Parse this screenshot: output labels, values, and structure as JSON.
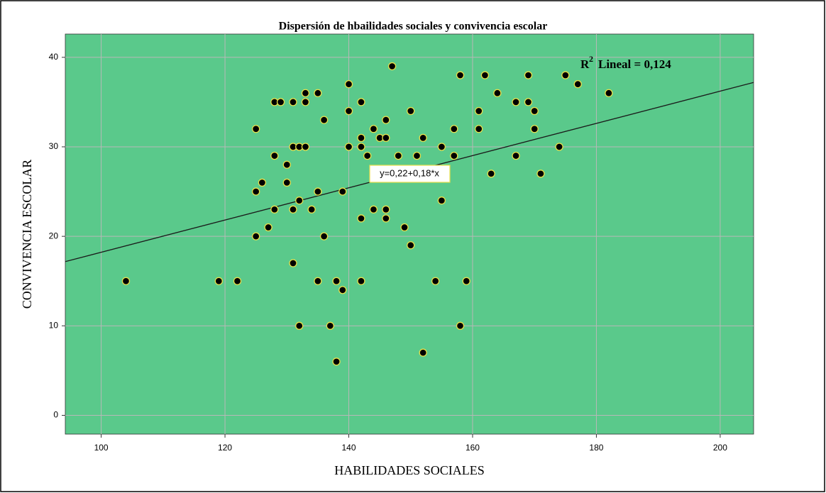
{
  "chart_data": {
    "type": "scatter",
    "title": "Dispersión de hbailidades sociales y convivencia escolar",
    "x_label": "HABILIDADES SOCIALES",
    "y_label": "CONVIVENCIA ESCOLAR",
    "x": [
      104,
      119,
      122,
      125,
      125,
      125,
      126,
      127,
      128,
      128,
      128,
      129,
      130,
      130,
      131,
      131,
      131,
      131,
      132,
      132,
      132,
      133,
      133,
      133,
      134,
      135,
      135,
      135,
      136,
      136,
      137,
      138,
      138,
      139,
      139,
      140,
      140,
      140,
      142,
      142,
      142,
      142,
      142,
      143,
      144,
      144,
      145,
      146,
      146,
      146,
      146,
      147,
      148,
      149,
      150,
      150,
      151,
      152,
      152,
      154,
      155,
      155,
      157,
      157,
      158,
      158,
      159,
      161,
      161,
      162,
      163,
      164,
      167,
      167,
      169,
      169,
      170,
      170,
      171,
      174,
      175,
      177,
      182
    ],
    "values": [
      15,
      15,
      15,
      32,
      25,
      20,
      26,
      21,
      35,
      29,
      23,
      35,
      28,
      26,
      35,
      30,
      23,
      17,
      30,
      24,
      10,
      36,
      35,
      30,
      23,
      36,
      25,
      15,
      33,
      20,
      10,
      15,
      6,
      25,
      14,
      37,
      34,
      30,
      35,
      31,
      30,
      22,
      15,
      29,
      32,
      23,
      31,
      33,
      31,
      23,
      22,
      39,
      29,
      21,
      34,
      19,
      29,
      31,
      7,
      15,
      30,
      24,
      32,
      29,
      38,
      10,
      15,
      34,
      32,
      38,
      27,
      36,
      35,
      29,
      38,
      35,
      34,
      32,
      27,
      30,
      38,
      37,
      36
    ],
    "point_color": "#000000",
    "point_edge_color": "#e8e04a",
    "background": "#5ac98b",
    "fit": {
      "label": "y=0,22+0,18*x",
      "intercept": 0.22,
      "slope": 0.18,
      "color": "#1a1a1a"
    },
    "r2": {
      "symbol": "R",
      "exponent": "2",
      "text": "Lineal = 0,124"
    },
    "xlim": [
      94.2,
      205.4
    ],
    "ylim": [
      -2.1,
      42.6
    ],
    "xticks": [
      100,
      120,
      140,
      160,
      180,
      200
    ],
    "yticks": [
      0,
      10,
      20,
      30,
      40
    ],
    "grid": true
  }
}
